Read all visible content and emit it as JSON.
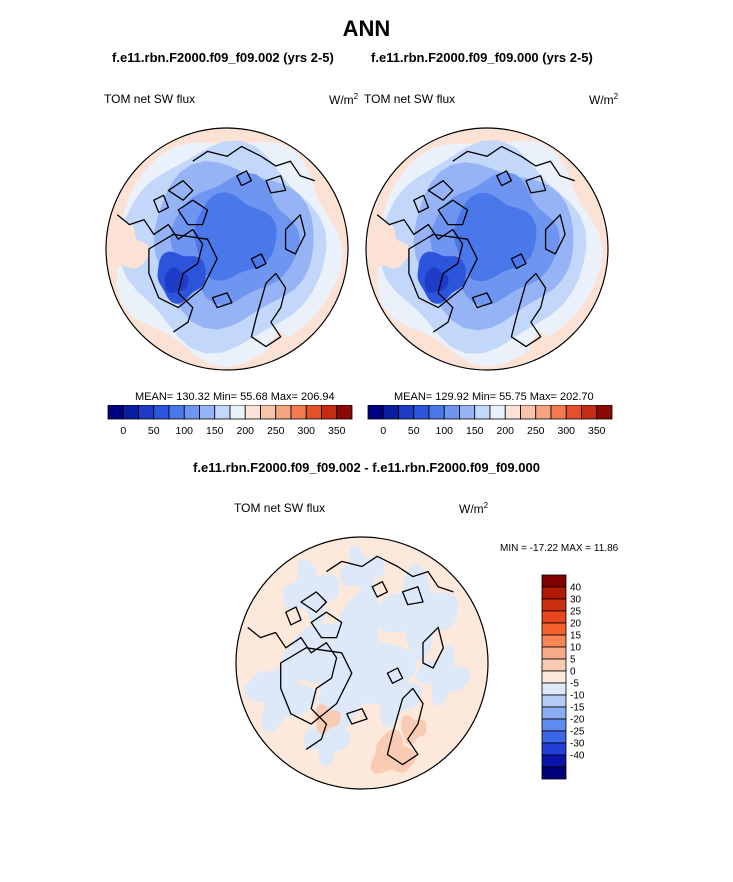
{
  "page": {
    "title": "ANN",
    "case_a": "f.e11.rbn.F2000.f09_f09.002 (yrs 2-5)",
    "case_b": "f.e11.rbn.F2000.f09_f09.000 (yrs 2-5)",
    "diff_title": "f.e11.rbn.F2000.f09_f09.002 - f.e11.rbn.F2000.f09_f09.000"
  },
  "chart_data": [
    {
      "type": "heatmap",
      "projection": "north-polar-stereographic",
      "variable": "TOM net SW flux",
      "units": "W/m",
      "units_sup": "2",
      "stats_text": "MEAN= 130.32  Min=  55.68  Max= 206.94",
      "mean": 130.32,
      "min": 55.68,
      "max": 206.94,
      "colorbar": {
        "levels": [
          0,
          25,
          50,
          75,
          100,
          125,
          150,
          175,
          200,
          225,
          250,
          275,
          300,
          325,
          350
        ],
        "tick_labels": [
          "0",
          "50",
          "100",
          "150",
          "200",
          "250",
          "300",
          "350"
        ],
        "colors": [
          "#000080",
          "#0a1ea0",
          "#1e3cc8",
          "#2d55dc",
          "#4a78ea",
          "#6e96f0",
          "#96b4f5",
          "#c3d7fa",
          "#eaf1fb",
          "#fbe2d4",
          "#f8c4aa",
          "#f5a480",
          "#f27a50",
          "#e4502a",
          "#c42c14",
          "#8b0a05"
        ]
      }
    },
    {
      "type": "heatmap",
      "projection": "north-polar-stereographic",
      "variable": "TOM net SW flux",
      "units": "W/m",
      "units_sup": "2",
      "stats_text": "MEAN= 129.92  Min=  55.75  Max= 202.70",
      "mean": 129.92,
      "min": 55.75,
      "max": 202.7,
      "colorbar": {
        "levels": [
          0,
          25,
          50,
          75,
          100,
          125,
          150,
          175,
          200,
          225,
          250,
          275,
          300,
          325,
          350
        ],
        "tick_labels": [
          "0",
          "50",
          "100",
          "150",
          "200",
          "250",
          "300",
          "350"
        ],
        "colors": [
          "#000080",
          "#0a1ea0",
          "#1e3cc8",
          "#2d55dc",
          "#4a78ea",
          "#6e96f0",
          "#96b4f5",
          "#c3d7fa",
          "#eaf1fb",
          "#fbe2d4",
          "#f8c4aa",
          "#f5a480",
          "#f27a50",
          "#e4502a",
          "#c42c14",
          "#8b0a05"
        ]
      }
    },
    {
      "type": "heatmap",
      "projection": "north-polar-stereographic",
      "variable": "TOM net SW flux",
      "units": "W/m",
      "units_sup": "2",
      "stats_text": "MIN = -17.22 MAX =  11.86",
      "min": -17.22,
      "max": 11.86,
      "colorbar": {
        "levels": [
          -40,
          -30,
          -25,
          -20,
          -15,
          -10,
          -5,
          0,
          5,
          10,
          15,
          20,
          25,
          30,
          40
        ],
        "tick_labels": [
          "40",
          "30",
          "25",
          "20",
          "15",
          "10",
          "5",
          "0",
          "-5",
          "-10",
          "-15",
          "-20",
          "-25",
          "-30",
          "-40"
        ],
        "colors": [
          "#800000",
          "#b01a05",
          "#cc3010",
          "#e8461e",
          "#f4612c",
          "#f68558",
          "#f7aa88",
          "#f9cbb3",
          "#fde8dc",
          "#dde8f8",
          "#b4cbf4",
          "#8aacf0",
          "#5f8aee",
          "#3a66e8",
          "#2040d8",
          "#0a14a8",
          "#00007a"
        ]
      }
    }
  ]
}
